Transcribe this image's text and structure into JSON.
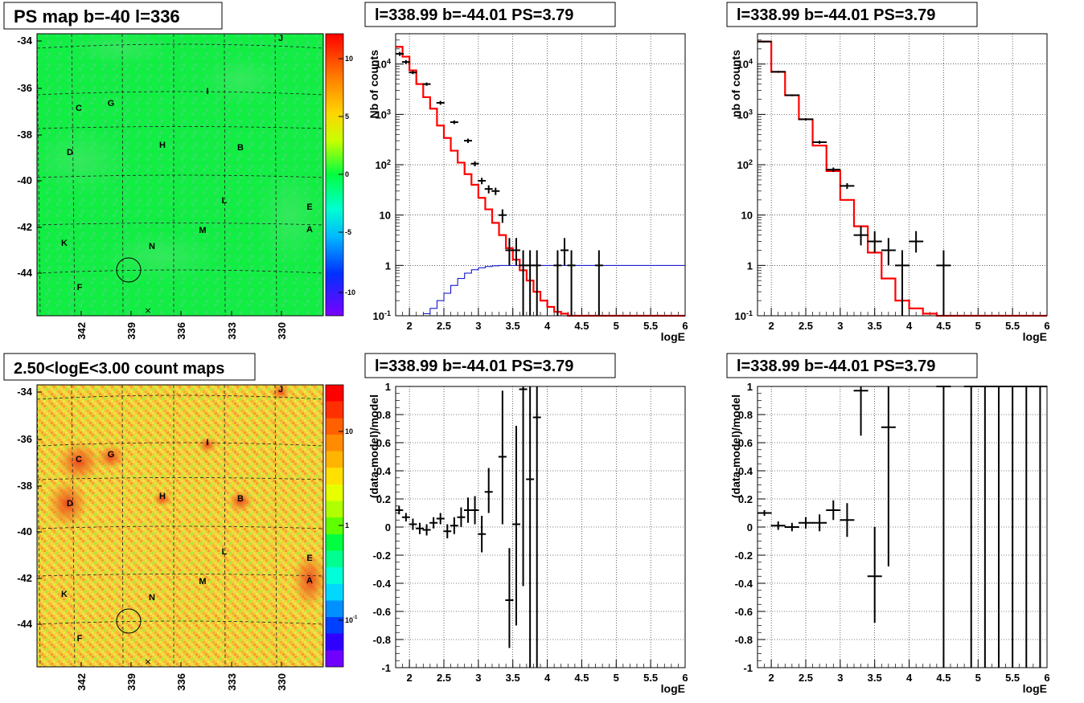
{
  "panels": {
    "map_top": {
      "title": "PS map b=-40 l=336",
      "x_ticks": [
        "342",
        "339",
        "336",
        "333",
        "330"
      ],
      "y_ticks": [
        "-34",
        "-36",
        "-38",
        "-40",
        "-42",
        "-44"
      ],
      "colorbar_ticks": [
        "10",
        "5",
        "0",
        "-5",
        "-10"
      ],
      "source_labels": [
        "J",
        "I",
        "C",
        "G",
        "D",
        "H",
        "B",
        "L",
        "E",
        "A",
        "K",
        "M",
        "N",
        "F"
      ]
    },
    "map_bottom": {
      "title": "2.50<logE<3.00 count maps",
      "x_ticks": [
        "342",
        "339",
        "336",
        "333",
        "330"
      ],
      "y_ticks": [
        "-34",
        "-36",
        "-38",
        "-40",
        "-42",
        "-44"
      ],
      "colorbar_ticks": [
        "10",
        "1",
        "10^-1"
      ],
      "source_labels": [
        "J",
        "I",
        "C",
        "G",
        "D",
        "H",
        "B",
        "L",
        "E",
        "A",
        "K",
        "M",
        "N",
        "F"
      ]
    },
    "spec1_title": "l=338.99 b=-44.01 PS=3.79",
    "spec2_title": "l=338.99 b=-44.01 PS=3.79",
    "res1_title": "l=338.99 b=-44.01 PS=3.79",
    "res2_title": "l=338.99 b=-44.01 PS=3.79"
  },
  "colors": {
    "data": "#000000",
    "model": "#ff0000",
    "background_model": "#0000cc"
  },
  "chart_data": [
    {
      "id": "spec1",
      "type": "line",
      "title": "l=338.99 b=-44.01 PS=3.79",
      "xlabel": "logE",
      "ylabel": "Nb of counts",
      "xlim": [
        1.8,
        6
      ],
      "ylim": [
        0.1,
        40000
      ],
      "yscale": "log",
      "grid": true,
      "x_ticks": [
        "2",
        "2.5",
        "3",
        "3.5",
        "4",
        "4.5",
        "5",
        "5.5",
        "6"
      ],
      "y_ticks": [
        "10^-1",
        "1",
        "10",
        "10^2",
        "10^3",
        "10^4"
      ],
      "model_step": {
        "edges": [
          1.8,
          1.9,
          2.0,
          2.1,
          2.2,
          2.3,
          2.4,
          2.5,
          2.6,
          2.7,
          2.8,
          2.9,
          3.0,
          3.1,
          3.2,
          3.3,
          3.4,
          3.5,
          3.6,
          3.7,
          3.8,
          3.9,
          4.0,
          4.1,
          4.2,
          4.3,
          4.4,
          6.0
        ],
        "values": [
          22000,
          14000,
          7500,
          4000,
          2200,
          1300,
          600,
          340,
          190,
          110,
          65,
          40,
          22,
          13,
          7,
          4,
          2.2,
          1.3,
          0.8,
          0.5,
          0.3,
          0.2,
          0.15,
          0.12,
          0.11,
          0.1,
          0.1
        ]
      },
      "background_step": {
        "edges": [
          2.2,
          2.3,
          2.4,
          2.5,
          2.6,
          2.7,
          2.8,
          2.9,
          3.0,
          3.1,
          3.2,
          3.3,
          3.4,
          3.5,
          4.0,
          6.0
        ],
        "values": [
          0.11,
          0.14,
          0.2,
          0.28,
          0.4,
          0.55,
          0.7,
          0.82,
          0.9,
          0.95,
          0.98,
          1.0,
          1.0,
          1.0,
          1.0
        ]
      },
      "data_points": [
        {
          "x": 1.86,
          "y": 16000,
          "lo": 14500,
          "hi": 17500
        },
        {
          "x": 1.95,
          "y": 11000,
          "lo": 10000,
          "hi": 12000
        },
        {
          "x": 2.05,
          "y": 6800,
          "lo": 6300,
          "hi": 7300
        },
        {
          "x": 2.25,
          "y": 4000,
          "lo": 3700,
          "hi": 4300
        },
        {
          "x": 2.45,
          "y": 1700,
          "lo": 1550,
          "hi": 1850
        },
        {
          "x": 2.65,
          "y": 700,
          "lo": 640,
          "hi": 760
        },
        {
          "x": 2.85,
          "y": 300,
          "lo": 270,
          "hi": 330
        },
        {
          "x": 2.95,
          "y": 105,
          "lo": 93,
          "hi": 117
        },
        {
          "x": 3.05,
          "y": 48,
          "lo": 41,
          "hi": 55
        },
        {
          "x": 3.15,
          "y": 33,
          "lo": 27,
          "hi": 39
        },
        {
          "x": 3.25,
          "y": 30,
          "lo": 25,
          "hi": 35
        },
        {
          "x": 3.35,
          "y": 10,
          "lo": 7,
          "hi": 13
        },
        {
          "x": 3.45,
          "y": 2,
          "lo": 1,
          "hi": 3.5
        },
        {
          "x": 3.55,
          "y": 2,
          "lo": 1,
          "hi": 3.5
        },
        {
          "x": 3.65,
          "y": 1,
          "lo": 0.1,
          "hi": 2
        },
        {
          "x": 3.75,
          "y": 1,
          "lo": 0.1,
          "hi": 2
        },
        {
          "x": 3.85,
          "y": 1,
          "lo": 0.1,
          "hi": 2
        },
        {
          "x": 4.15,
          "y": 1,
          "lo": 0.1,
          "hi": 2
        },
        {
          "x": 4.25,
          "y": 2,
          "lo": 1,
          "hi": 3.5
        },
        {
          "x": 4.35,
          "y": 1,
          "lo": 0.1,
          "hi": 2
        },
        {
          "x": 4.75,
          "y": 1,
          "lo": 0.1,
          "hi": 2
        }
      ]
    },
    {
      "id": "spec2",
      "type": "line",
      "title": "l=338.99 b=-44.01 PS=3.79",
      "xlabel": "logE",
      "ylabel": "nb of counts",
      "xlim": [
        1.8,
        6
      ],
      "ylim": [
        0.1,
        40000
      ],
      "yscale": "log",
      "grid": true,
      "x_ticks": [
        "2",
        "2.5",
        "3",
        "3.5",
        "4",
        "4.5",
        "5",
        "5.5",
        "6"
      ],
      "y_ticks": [
        "10^-1",
        "1",
        "10",
        "10^2",
        "10^3",
        "10^4"
      ],
      "model_step": {
        "edges": [
          1.8,
          2.0,
          2.2,
          2.4,
          2.6,
          2.8,
          3.0,
          3.2,
          3.4,
          3.6,
          3.8,
          4.0,
          4.2,
          4.4,
          6.0
        ],
        "values": [
          28000,
          7000,
          2400,
          800,
          240,
          75,
          20,
          6,
          1.8,
          0.55,
          0.2,
          0.14,
          0.11,
          0.1
        ]
      },
      "data_points": [
        {
          "x": 1.9,
          "y": 28000,
          "lo": 27000,
          "hi": 29000
        },
        {
          "x": 2.1,
          "y": 7000,
          "lo": 6700,
          "hi": 7300
        },
        {
          "x": 2.3,
          "y": 2400,
          "lo": 2300,
          "hi": 2500
        },
        {
          "x": 2.5,
          "y": 800,
          "lo": 760,
          "hi": 840
        },
        {
          "x": 2.7,
          "y": 280,
          "lo": 260,
          "hi": 300
        },
        {
          "x": 2.9,
          "y": 80,
          "lo": 72,
          "hi": 88
        },
        {
          "x": 3.1,
          "y": 38,
          "lo": 33,
          "hi": 43
        },
        {
          "x": 3.3,
          "y": 4,
          "lo": 2.5,
          "hi": 6
        },
        {
          "x": 3.5,
          "y": 3,
          "lo": 1.8,
          "hi": 4.8
        },
        {
          "x": 3.7,
          "y": 2,
          "lo": 1,
          "hi": 3.5
        },
        {
          "x": 3.9,
          "y": 1,
          "lo": 0.1,
          "hi": 2
        },
        {
          "x": 4.1,
          "y": 3,
          "lo": 1.8,
          "hi": 4.8
        },
        {
          "x": 4.5,
          "y": 1,
          "lo": 0.1,
          "hi": 2
        }
      ]
    },
    {
      "id": "res1",
      "type": "scatter",
      "title": "l=338.99 b=-44.01 PS=3.79",
      "xlabel": "logE",
      "ylabel": "(data-model)/model",
      "xlim": [
        1.8,
        6
      ],
      "ylim": [
        -1,
        1
      ],
      "grid": true,
      "x_ticks": [
        "2",
        "2.5",
        "3",
        "3.5",
        "4",
        "4.5",
        "5",
        "5.5",
        "6"
      ],
      "y_ticks": [
        "-1",
        "-0.8",
        "-0.6",
        "-0.4",
        "-0.2",
        "0",
        "0.2",
        "0.4",
        "0.6",
        "0.8",
        "1"
      ],
      "data_points": [
        {
          "x": 1.85,
          "y": 0.12,
          "lo": 0.09,
          "hi": 0.15
        },
        {
          "x": 1.95,
          "y": 0.07,
          "lo": 0.04,
          "hi": 0.1
        },
        {
          "x": 2.05,
          "y": 0.02,
          "lo": -0.02,
          "hi": 0.06
        },
        {
          "x": 2.15,
          "y": -0.01,
          "lo": -0.05,
          "hi": 0.03
        },
        {
          "x": 2.25,
          "y": -0.02,
          "lo": -0.06,
          "hi": 0.02
        },
        {
          "x": 2.35,
          "y": 0.03,
          "lo": -0.01,
          "hi": 0.07
        },
        {
          "x": 2.45,
          "y": 0.06,
          "lo": 0.02,
          "hi": 0.1
        },
        {
          "x": 2.55,
          "y": -0.03,
          "lo": -0.08,
          "hi": 0.02
        },
        {
          "x": 2.65,
          "y": 0.01,
          "lo": -0.05,
          "hi": 0.07
        },
        {
          "x": 2.75,
          "y": 0.07,
          "lo": 0.0,
          "hi": 0.14
        },
        {
          "x": 2.85,
          "y": 0.12,
          "lo": 0.03,
          "hi": 0.21
        },
        {
          "x": 2.95,
          "y": 0.12,
          "lo": 0.02,
          "hi": 0.22
        },
        {
          "x": 3.05,
          "y": -0.05,
          "lo": -0.18,
          "hi": 0.08
        },
        {
          "x": 3.15,
          "y": 0.25,
          "lo": 0.1,
          "hi": 0.42
        },
        {
          "x": 3.35,
          "y": 0.5,
          "lo": 0.02,
          "hi": 0.97
        },
        {
          "x": 3.45,
          "y": -0.52,
          "lo": -0.86,
          "hi": -0.15
        },
        {
          "x": 3.55,
          "y": 0.02,
          "lo": -0.7,
          "hi": 0.72
        },
        {
          "x": 3.65,
          "y": 0.98,
          "lo": -0.42,
          "hi": 1.0
        },
        {
          "x": 3.75,
          "y": 0.34,
          "lo": -1.0,
          "hi": 1.0
        },
        {
          "x": 3.85,
          "y": 0.78,
          "lo": -1.0,
          "hi": 1.0
        }
      ]
    },
    {
      "id": "res2",
      "type": "scatter",
      "title": "l=338.99 b=-44.01 PS=3.79",
      "xlabel": "logE",
      "ylabel": "(data-model)/model",
      "xlim": [
        1.8,
        6
      ],
      "ylim": [
        -1,
        1
      ],
      "grid": true,
      "x_ticks": [
        "2",
        "2.5",
        "3",
        "3.5",
        "4",
        "4.5",
        "5",
        "5.5",
        "6"
      ],
      "y_ticks": [
        "-1",
        "-0.8",
        "-0.6",
        "-0.4",
        "-0.2",
        "0",
        "0.2",
        "0.4",
        "0.6",
        "0.8",
        "1"
      ],
      "data_points": [
        {
          "x": 1.9,
          "y": 0.1,
          "lo": 0.08,
          "hi": 0.12
        },
        {
          "x": 2.1,
          "y": 0.01,
          "lo": -0.02,
          "hi": 0.04
        },
        {
          "x": 2.3,
          "y": 0.0,
          "lo": -0.03,
          "hi": 0.03
        },
        {
          "x": 2.5,
          "y": 0.03,
          "lo": -0.01,
          "hi": 0.07
        },
        {
          "x": 2.7,
          "y": 0.03,
          "lo": -0.03,
          "hi": 0.09
        },
        {
          "x": 2.9,
          "y": 0.12,
          "lo": 0.05,
          "hi": 0.19
        },
        {
          "x": 3.1,
          "y": 0.05,
          "lo": -0.07,
          "hi": 0.17
        },
        {
          "x": 3.3,
          "y": 0.97,
          "lo": 0.65,
          "hi": 1.0
        },
        {
          "x": 3.5,
          "y": -0.35,
          "lo": -0.68,
          "hi": 0.0
        },
        {
          "x": 3.7,
          "y": 0.71,
          "lo": -0.28,
          "hi": 1.0
        },
        {
          "x": 4.5,
          "y": 1.0,
          "lo": -1.0,
          "hi": 1.0
        },
        {
          "x": 4.9,
          "y": 1.0,
          "lo": -1.0,
          "hi": 1.0
        },
        {
          "x": 5.1,
          "y": 1.0,
          "lo": -1.0,
          "hi": 1.0
        },
        {
          "x": 5.3,
          "y": 1.0,
          "lo": -1.0,
          "hi": 1.0
        },
        {
          "x": 5.5,
          "y": 1.0,
          "lo": -1.0,
          "hi": 1.0
        },
        {
          "x": 5.7,
          "y": 1.0,
          "lo": -1.0,
          "hi": 1.0
        },
        {
          "x": 5.9,
          "y": 1.0,
          "lo": -1.0,
          "hi": 1.0
        }
      ]
    }
  ]
}
